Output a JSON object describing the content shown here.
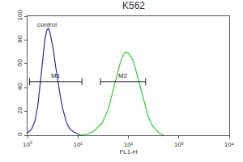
{
  "chart_data": {
    "type": "line",
    "title": "K562",
    "x_label": "FL1-H",
    "log": "x",
    "xlim": [
      1,
      10000
    ],
    "xticks": [
      {
        "value": 1,
        "label": "10⁰"
      },
      {
        "value": 10,
        "label": "10¹"
      },
      {
        "value": 100,
        "label": "10²"
      },
      {
        "value": 1000,
        "label": "10³"
      },
      {
        "value": 10000,
        "label": "10⁴"
      }
    ],
    "ylim": [
      0,
      100
    ],
    "yticks": [
      0,
      20,
      40,
      60,
      80,
      100
    ],
    "grid": false,
    "series": [
      {
        "name": "control",
        "color": "#2a2aa8",
        "x": [
          1,
          1.2,
          1.4,
          1.6,
          1.8,
          2.0,
          2.2,
          2.4,
          2.6,
          2.8,
          3.0,
          3.3,
          3.6,
          4.0,
          4.5,
          5,
          5.5,
          6,
          7,
          8,
          9,
          10,
          12
        ],
        "values": [
          2,
          5,
          12,
          25,
          45,
          65,
          80,
          88,
          90,
          86,
          80,
          70,
          58,
          45,
          32,
          22,
          15,
          10,
          5,
          3,
          2,
          1,
          0
        ]
      },
      {
        "color": "#33cc33",
        "x": [
          10,
          15,
          20,
          30,
          40,
          50,
          60,
          70,
          80,
          90,
          100,
          120,
          140,
          170,
          200,
          250,
          300,
          400,
          500
        ],
        "values": [
          0,
          1,
          3,
          10,
          22,
          38,
          52,
          62,
          68,
          70,
          69,
          64,
          55,
          42,
          30,
          15,
          8,
          2,
          0
        ]
      }
    ],
    "gates": [
      {
        "label": "M1",
        "x": [
          1.1,
          12
        ],
        "y": 45
      },
      {
        "label": "M2",
        "x": [
          28,
          220
        ],
        "y": 45
      }
    ]
  }
}
